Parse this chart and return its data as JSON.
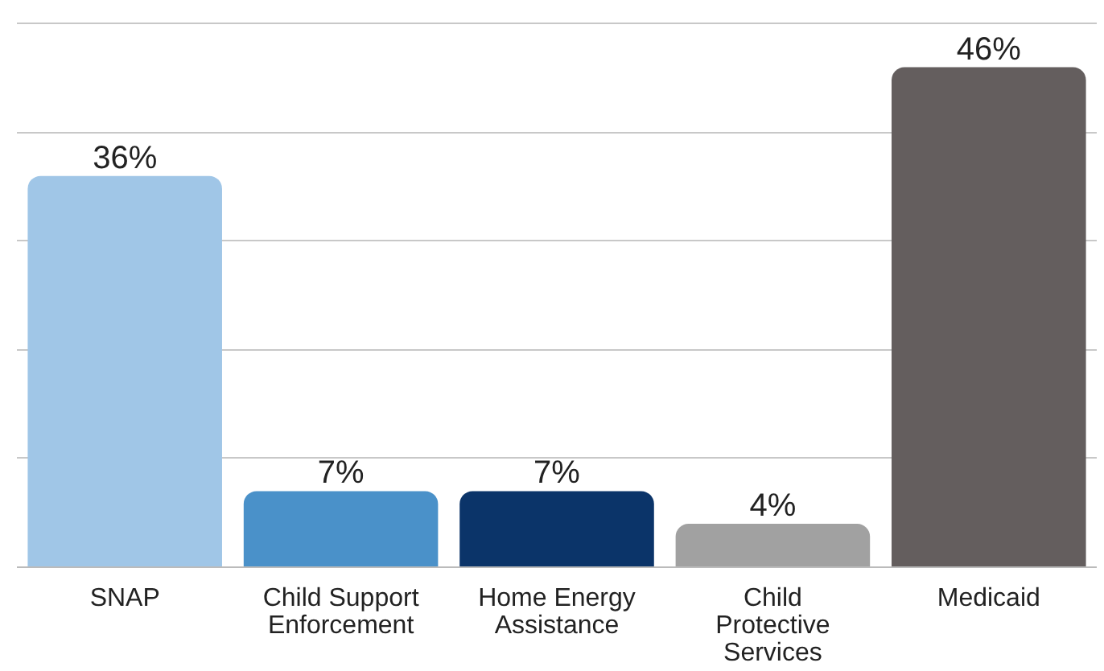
{
  "chart_data": {
    "type": "bar",
    "categories": [
      "SNAP",
      "Child Support\nEnforcement",
      "Home Energy\nAssistance",
      "Child\nProtective\nServices",
      "Medicaid"
    ],
    "values": [
      36,
      7,
      7,
      4,
      46
    ],
    "value_labels": [
      "36%",
      "7%",
      "7%",
      "4%",
      "46%"
    ],
    "colors": [
      "#a0c6e7",
      "#4a91c9",
      "#0b3469",
      "#a1a1a1",
      "#645e5e"
    ],
    "grid": "y"
  }
}
